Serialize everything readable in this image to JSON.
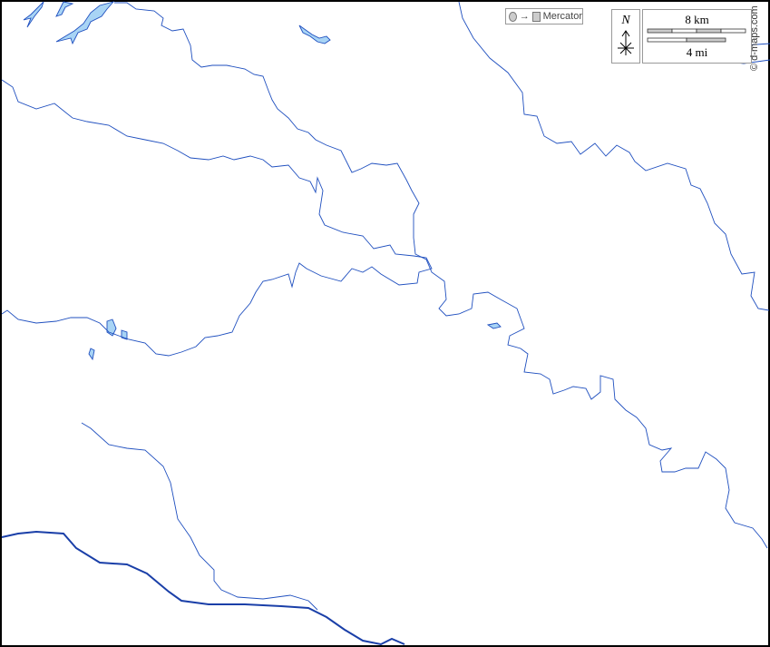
{
  "map": {
    "border_color": "#000000",
    "water_fill": "#a8d4f5",
    "river_color": "#1f4fbf"
  },
  "legend": {
    "projection": "Mercator",
    "arrow": "→",
    "north": "N",
    "scale_km": "8 km",
    "scale_mi": "4 mi",
    "credit": "© d-maps.com"
  }
}
